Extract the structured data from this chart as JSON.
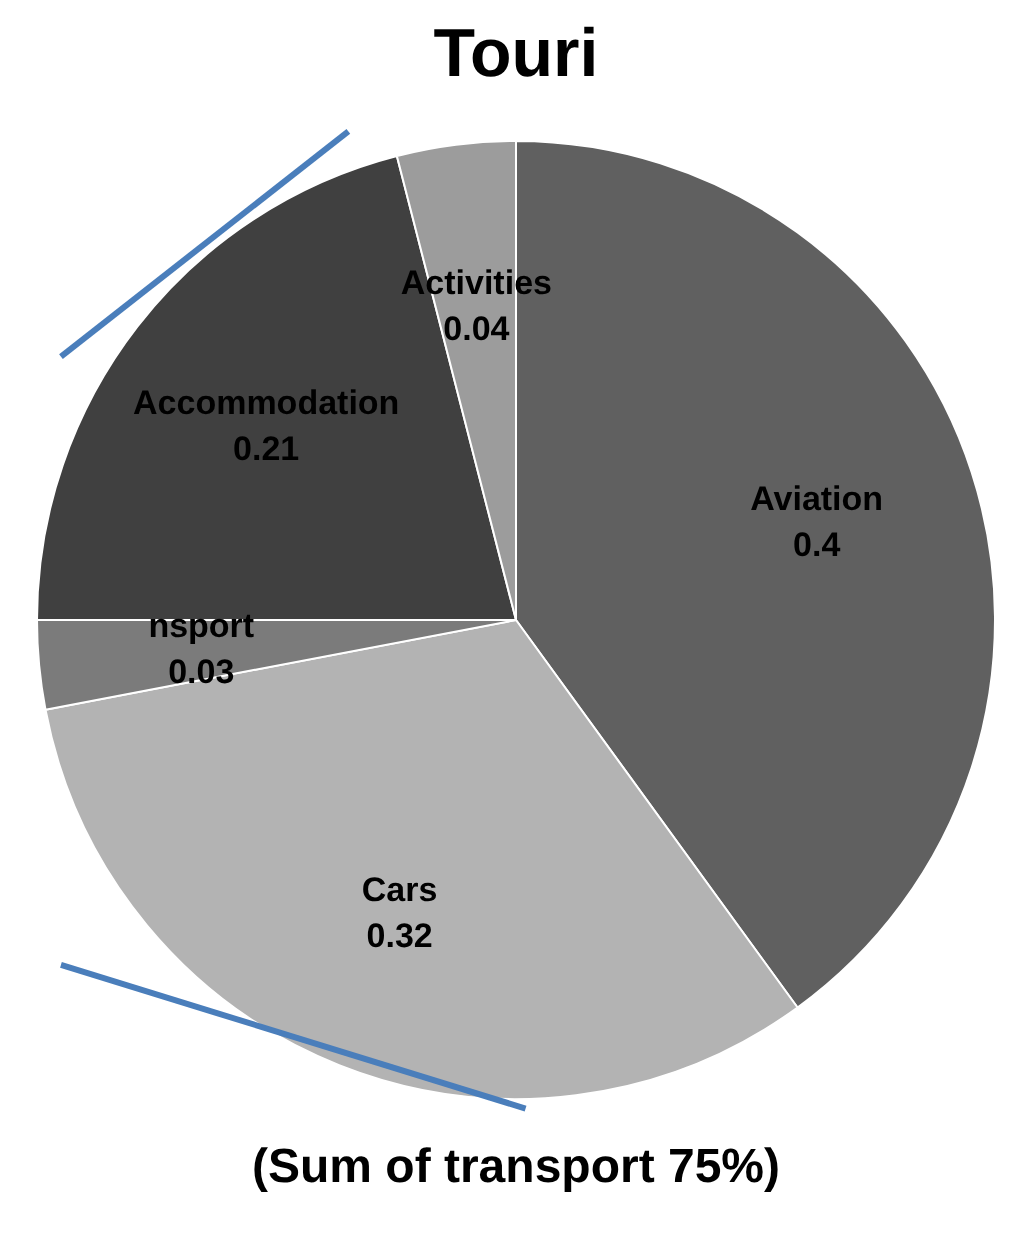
{
  "chart_data": {
    "type": "pie",
    "title": "Touri",
    "categories": [
      "Aviation",
      "Cars",
      "nsport",
      "Accommodation",
      "Activities"
    ],
    "values": [
      0.4,
      0.32,
      0.03,
      0.21,
      0.04
    ],
    "colors": [
      "#606060",
      "#b3b3b3",
      "#7b7b7b",
      "#404040",
      "#9c9c9c"
    ],
    "data_labels": true,
    "legend": false,
    "annotations": [
      "(Sum of transport 75%)"
    ]
  }
}
